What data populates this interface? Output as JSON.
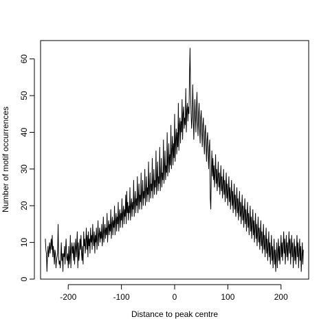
{
  "chart_data": {
    "type": "line",
    "title": "",
    "xlabel": "Distance to peak centre",
    "ylabel": "Number of motif occurrences",
    "xlim": [
      -252,
      252
    ],
    "ylim": [
      0,
      65
    ],
    "x_ticks": [
      -200,
      -100,
      0,
      100,
      200
    ],
    "y_ticks": [
      0,
      10,
      20,
      30,
      40,
      50,
      60
    ],
    "x_tick_labels": [
      "-200",
      "-100",
      "0",
      "100",
      "200"
    ],
    "y_tick_labels": [
      "0",
      "10",
      "20",
      "30",
      "40",
      "50",
      "60"
    ],
    "x_start": -243,
    "x_step": 1,
    "series": [
      {
        "line_color": "#000000",
        "values": [
          11,
          8,
          7,
          2,
          6,
          9,
          6,
          8,
          10,
          7,
          9,
          11,
          8,
          12,
          6,
          9,
          7,
          4,
          8,
          7,
          3,
          5,
          6,
          7,
          15,
          6,
          4,
          5,
          3,
          6,
          10,
          5,
          7,
          2,
          7,
          6,
          9,
          4,
          8,
          11,
          6,
          5,
          7,
          3,
          9,
          4,
          6,
          12,
          3,
          8,
          10,
          7,
          9,
          5,
          10,
          4,
          8,
          11,
          6,
          9,
          13,
          3,
          10,
          5,
          7,
          11,
          8,
          12,
          7,
          5,
          9,
          4,
          13,
          9,
          11,
          7,
          10,
          14,
          8,
          12,
          6,
          13,
          9,
          11,
          7,
          14,
          10,
          12,
          8,
          15,
          11,
          9,
          13,
          7,
          12,
          10,
          14,
          8,
          11,
          16,
          9,
          12,
          14,
          10,
          13,
          11,
          15,
          9,
          12,
          17,
          10,
          13,
          15,
          11,
          14,
          12,
          18,
          10,
          14,
          16,
          12,
          15,
          13,
          19,
          11,
          15,
          17,
          12,
          16,
          14,
          20,
          12,
          16,
          18,
          13,
          17,
          15,
          21,
          13,
          17,
          19,
          14,
          18,
          16,
          22,
          14,
          18,
          20,
          15,
          19,
          17,
          23,
          15,
          24,
          18,
          21,
          16,
          20,
          18,
          25,
          16,
          20,
          22,
          17,
          21,
          19,
          27,
          17,
          21,
          24,
          18,
          22,
          20,
          28,
          18,
          22,
          26,
          19,
          23,
          21,
          29,
          19,
          23,
          27,
          20,
          24,
          22,
          30,
          20,
          24,
          28,
          21,
          25,
          23,
          32,
          21,
          25,
          29,
          22,
          26,
          24,
          33,
          22,
          26,
          30,
          23,
          27,
          25,
          35,
          23,
          27,
          32,
          24,
          28,
          26,
          36,
          24,
          28,
          33,
          25,
          29,
          27,
          38,
          26,
          30,
          35,
          27,
          31,
          29,
          40,
          28,
          32,
          37,
          29,
          34,
          31,
          42,
          30,
          35,
          39,
          31,
          37,
          33,
          45,
          32,
          38,
          41,
          34,
          40,
          36,
          48,
          35,
          42,
          44,
          37,
          43,
          40,
          49,
          38,
          45,
          47,
          41,
          44,
          42,
          52,
          40,
          46,
          48,
          43,
          47,
          45,
          56,
          63,
          50,
          45,
          41,
          44,
          53,
          46,
          38,
          43,
          49,
          44,
          40,
          47,
          51,
          43,
          39,
          45,
          48,
          41,
          37,
          44,
          46,
          40,
          36,
          42,
          44,
          38,
          34,
          40,
          42,
          36,
          32,
          38,
          40,
          34,
          30,
          36,
          38,
          22,
          19,
          29,
          35,
          28,
          33,
          27,
          31,
          25,
          29,
          34,
          26,
          30,
          24,
          28,
          32,
          25,
          29,
          23,
          27,
          31,
          24,
          28,
          22,
          26,
          30,
          23,
          27,
          21,
          25,
          29,
          22,
          26,
          20,
          24,
          28,
          21,
          25,
          19,
          23,
          27,
          20,
          24,
          18,
          22,
          26,
          19,
          23,
          17,
          21,
          25,
          18,
          22,
          16,
          20,
          24,
          17,
          21,
          15,
          19,
          23,
          16,
          20,
          14,
          18,
          22,
          15,
          19,
          13,
          17,
          21,
          14,
          18,
          12,
          16,
          20,
          13,
          17,
          11,
          15,
          19,
          12,
          16,
          10,
          14,
          18,
          11,
          15,
          9,
          13,
          17,
          10,
          14,
          8,
          12,
          16,
          9,
          13,
          7,
          11,
          15,
          8,
          12,
          6,
          10,
          14,
          7,
          11,
          5,
          9,
          13,
          6,
          10,
          4,
          8,
          12,
          5,
          9,
          3,
          7,
          11,
          4,
          8,
          2,
          6,
          10,
          3,
          7,
          11,
          5,
          9,
          4,
          8,
          12,
          6,
          10,
          5,
          9,
          13,
          7,
          11,
          4,
          8,
          12,
          6,
          10,
          5,
          9,
          13,
          7,
          11,
          4,
          8,
          12,
          6,
          10,
          3,
          7,
          11,
          5,
          9,
          4,
          8,
          12,
          6,
          10,
          3,
          7,
          11,
          5,
          9,
          2,
          6,
          10,
          4,
          8
        ]
      }
    ]
  }
}
